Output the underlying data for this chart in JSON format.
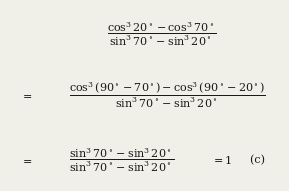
{
  "background_color": "#f0efe8",
  "text_color": "#1a1a1a",
  "figsize": [
    2.89,
    1.91
  ],
  "dpi": 100,
  "line1": "$\\dfrac{\\cos^3 20^\\circ - \\cos^3 70^\\circ}{\\sin^3 70^\\circ - \\sin^3 20^\\circ}$",
  "line2_eq": "$=$",
  "line2_frac": "$\\dfrac{\\cos^3(90^\\circ - 70^\\circ) - \\cos^3(90^\\circ - 20^\\circ)}{\\sin^3 70^\\circ - \\sin^3 20^\\circ}$",
  "line3_eq": "$=$",
  "line3_frac": "$\\dfrac{\\sin^3 70^\\circ - \\sin^3 20^\\circ}{\\sin^3 70^\\circ - \\sin^3 20^\\circ}$",
  "line3_result": "$= 1$",
  "line3_label": "  (c)"
}
